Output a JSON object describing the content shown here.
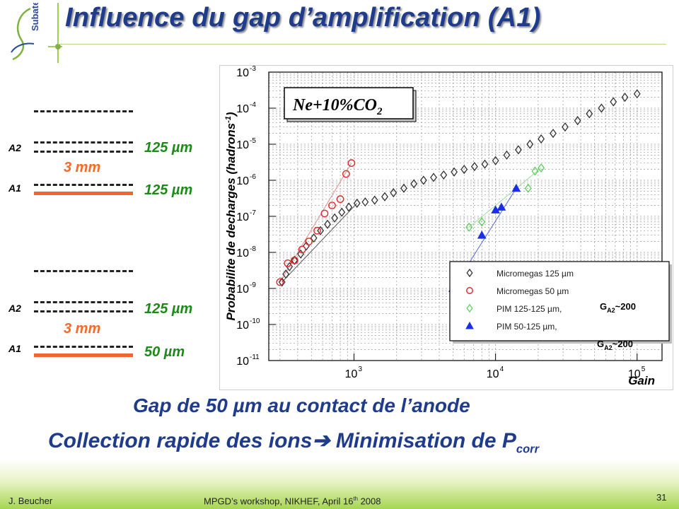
{
  "slide": {
    "title": "Influence du gap d’amplification  (A1)",
    "logo_text": "Subatech",
    "page_number": "31",
    "footer_author": "J. Beucher",
    "footer_event_prefix": "MPGD’s workshop, NIKHEF, April 16",
    "footer_event_sup": "th",
    "footer_event_suffix": " 2008",
    "colors": {
      "title": "#1f3c8c",
      "green_label": "#1d8a18",
      "orange": "#f36b2b",
      "anode": "#f26430"
    }
  },
  "schematic": {
    "top": {
      "a2_label": "A2",
      "a1_label": "A1",
      "drift_gap": "3 mm",
      "a2_gap": "125 µm",
      "a1_gap": "125 µm"
    },
    "bottom": {
      "a2_label": "A2",
      "a1_label": "A1",
      "drift_gap": "3 mm",
      "a2_gap": "125 µm",
      "a1_gap": "50 µm"
    }
  },
  "conclusion": {
    "line1": "Gap de 50 µm au contact de l’anode",
    "line2_a": "Collection rapide des ions",
    "line2_arrow": "➔",
    "line2_b": " Minimisation de P",
    "line2_sub": "corr"
  },
  "chart_data": {
    "type": "scatter",
    "title": "Ne+10%CO",
    "title_sub": "2",
    "xlabel": "Gain",
    "ylabel": "Probabilite de decharges (hadrons",
    "ylabel_sup": "-1",
    "ylabel_end": ")",
    "x_scale": "log",
    "y_scale": "log",
    "xlim": [
      250,
      150000
    ],
    "ylim": [
      1e-11,
      0.001
    ],
    "x_tick_labels": [
      "10",
      "10",
      "10"
    ],
    "x_tick_exps": [
      "3",
      "4",
      "5"
    ],
    "x_tick_values": [
      1000,
      10000,
      100000
    ],
    "y_tick_labels": [
      "10",
      "10",
      "10",
      "10",
      "10",
      "10",
      "10",
      "10",
      "10"
    ],
    "y_tick_exps": [
      "-3",
      "-4",
      "-5",
      "-6",
      "-7",
      "-8",
      "-9",
      "-10",
      "-11"
    ],
    "y_tick_values": [
      0.001,
      0.0001,
      1e-05,
      1e-06,
      1e-07,
      1e-08,
      1e-09,
      1e-10,
      1e-11
    ],
    "grid": true,
    "legend_position": "bottom-right",
    "series": [
      {
        "name": "Micromegas 125 µm",
        "marker": "diamond-open",
        "color": "#333333",
        "x": [
          310,
          330,
          350,
          380,
          420,
          460,
          520,
          580,
          650,
          730,
          820,
          920,
          1050,
          1200,
          1400,
          1650,
          1900,
          2250,
          2650,
          3100,
          3650,
          4300,
          5100,
          6000,
          7100,
          8400,
          10000,
          12000,
          14500,
          17500,
          21000,
          25500,
          31000,
          38000,
          46000,
          56000,
          68000,
          82000,
          100000
        ],
        "y": [
          1.5e-09,
          2.5e-09,
          4e-09,
          6e-09,
          9e-09,
          1.5e-08,
          2.5e-08,
          4e-08,
          6e-08,
          9e-08,
          1.3e-07,
          1.8e-07,
          2.3e-07,
          2.5e-07,
          2.8e-07,
          3.5e-07,
          4.5e-07,
          6e-07,
          8e-07,
          1e-06,
          1.2e-06,
          1.4e-06,
          1.7e-06,
          2e-06,
          2.4e-06,
          2.8e-06,
          3.5e-06,
          5e-06,
          7e-06,
          1e-05,
          1.4e-05,
          2e-05,
          3e-05,
          4.5e-05,
          7e-05,
          0.0001,
          0.00015,
          0.0002,
          0.00025
        ]
      },
      {
        "name": "Micromegas 50 µm",
        "marker": "circle-open",
        "color": "#e02a2a",
        "x": [
          300,
          340,
          380,
          430,
          480,
          550,
          620,
          700,
          800,
          880,
          960
        ],
        "y": [
          1.5e-09,
          5e-09,
          6e-09,
          1.2e-08,
          2e-08,
          4e-08,
          1.2e-07,
          2e-07,
          3e-07,
          1.5e-06,
          3e-06
        ]
      },
      {
        "name": "PIM 125-125 µm,",
        "name_suffix": "G",
        "name_sub": "A2",
        "name_tail": "~200",
        "marker": "diamond-open",
        "color": "#5fcf5f",
        "x": [
          6500,
          8000,
          17000,
          19000,
          21000
        ],
        "y": [
          5e-08,
          7e-08,
          6e-07,
          1.8e-06,
          2.2e-06
        ]
      },
      {
        "name": "PIM 50-125 µm,",
        "name_suffix": "G",
        "name_sub": "A2",
        "name_tail": "~200",
        "marker": "triangle-filled",
        "color": "#1a2ee6",
        "x": [
          5000,
          8000,
          10000,
          11000,
          14000
        ],
        "y": [
          1e-09,
          3e-08,
          1.5e-07,
          1.8e-07,
          6e-07
        ]
      }
    ]
  }
}
